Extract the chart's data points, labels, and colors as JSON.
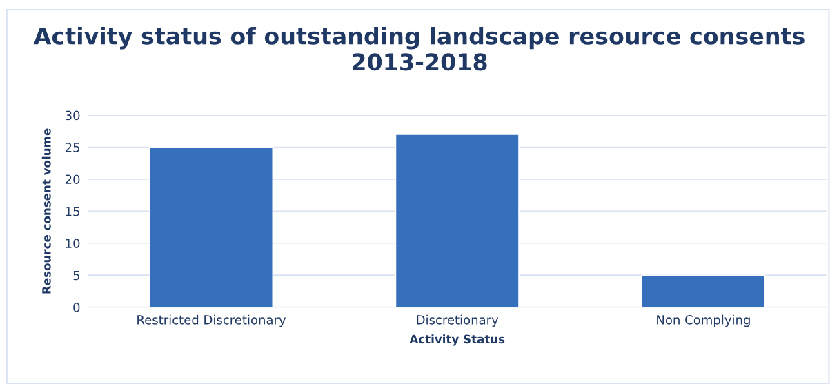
{
  "chart_data": {
    "type": "bar",
    "title": "Activity status of outstanding landscape resource consents 2013-2018",
    "xlabel": "Activity Status",
    "ylabel": "Resource consent volume",
    "categories": [
      "Restricted Discretionary",
      "Discretionary",
      "Non Complying"
    ],
    "values": [
      25,
      27,
      5
    ],
    "color": "#3670bd",
    "ylim": [
      0,
      30
    ],
    "yticks": [
      0,
      5,
      10,
      15,
      20,
      25,
      30
    ],
    "grid": "y",
    "legend": false
  }
}
